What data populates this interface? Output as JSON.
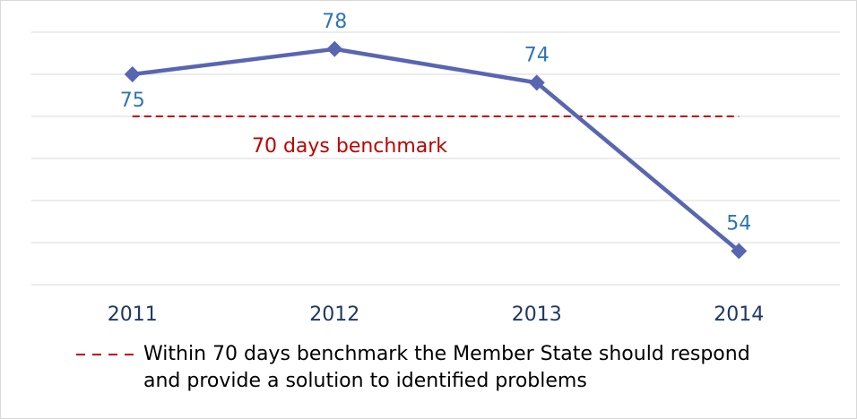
{
  "chart_data": {
    "type": "line",
    "categories": [
      "2011",
      "2012",
      "2013",
      "2014"
    ],
    "series": [
      {
        "values": [
          75,
          78,
          74,
          54
        ],
        "color": "#5866b2"
      }
    ],
    "ylim": [
      50,
      80
    ],
    "yticks": [
      50,
      55,
      60,
      65,
      70,
      75,
      80
    ],
    "grid": true,
    "benchmark": {
      "value": 70,
      "label": "70 days benchmark",
      "color": "#c00000"
    },
    "legend_note": [
      "Within 70 days benchmark the Member State should respond",
      "and provide a solution to identified problems"
    ]
  }
}
